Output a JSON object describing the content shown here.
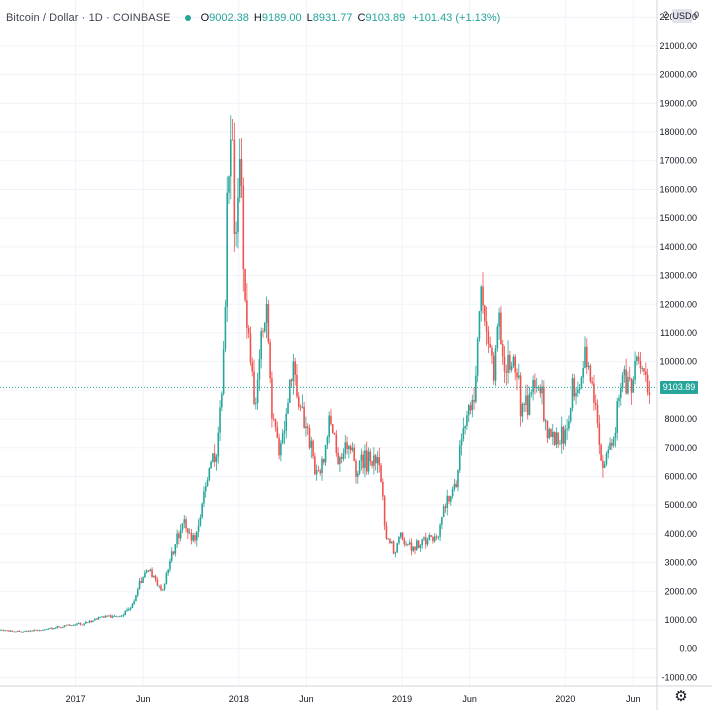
{
  "header": {
    "title": "Bitcoin / Dollar · 1D · COINBASE",
    "open_label": "O",
    "open": "9002.38",
    "high_label": "H",
    "high": "9189.00",
    "low_label": "L",
    "low": "8931.77",
    "close_label": "C",
    "close": "9103.89",
    "change": "+101.43 (+1.13%)"
  },
  "price_axis": {
    "currency": "USD",
    "clipped_left": "2",
    "clipped_right": "0",
    "last_price": "9103.89"
  },
  "colors": {
    "up": "#26a69a",
    "down": "#ef5350",
    "last_price": "#26a69a",
    "grid": "#f0f3fa",
    "axis_text": "#131722"
  },
  "icons": {
    "settings": "gear-icon",
    "status": "status-dot-icon"
  },
  "chart_data": {
    "type": "candlestick",
    "title": "Bitcoin / Dollar · 1D · COINBASE",
    "xlabel": "",
    "ylabel": "",
    "ylim": [
      -1300,
      22600
    ],
    "xlim": [
      "2016-07-16",
      "2020-07-24"
    ],
    "grid": true,
    "y_ticks": [
      "-1000.00",
      "0.00",
      "1000.00",
      "2000.00",
      "3000.00",
      "4000.00",
      "5000.00",
      "6000.00",
      "7000.00",
      "8000.00",
      "9000.00",
      "10000.00",
      "11000.00",
      "12000.00",
      "13000.00",
      "14000.00",
      "15000.00",
      "16000.00",
      "17000.00",
      "18000.00",
      "19000.00",
      "20000.00",
      "21000.00",
      "22000.00"
    ],
    "x_ticks": [
      {
        "label": "2017",
        "date": "2017-01-01"
      },
      {
        "label": "Jun",
        "date": "2017-06-01"
      },
      {
        "label": "2018",
        "date": "2018-01-01"
      },
      {
        "label": "Jun",
        "date": "2018-06-01"
      },
      {
        "label": "2019",
        "date": "2019-01-01"
      },
      {
        "label": "Jun",
        "date": "2019-06-01"
      },
      {
        "label": "2020",
        "date": "2020-01-01"
      },
      {
        "label": "Jun",
        "date": "2020-06-01"
      }
    ],
    "last_price_line": 9103.89,
    "series": [
      {
        "x": [
          "2016-07-16",
          "2016-08-15",
          "2016-09-15",
          "2016-10-15",
          "2016-11-15",
          "2016-12-15",
          "2017-01-05",
          "2017-01-15",
          "2017-02-15",
          "2017-03-15",
          "2017-04-05",
          "2017-04-15",
          "2017-05-01",
          "2017-05-15",
          "2017-05-25",
          "2017-06-10",
          "2017-06-25",
          "2017-07-15",
          "2017-07-25",
          "2017-08-05",
          "2017-08-20",
          "2017-09-02",
          "2017-09-14",
          "2017-09-25",
          "2017-10-10",
          "2017-10-20",
          "2017-11-01",
          "2017-11-12",
          "2017-11-20",
          "2017-11-29",
          "2017-12-07",
          "2017-12-12",
          "2017-12-17",
          "2017-12-22",
          "2017-12-28",
          "2018-01-06",
          "2018-01-10",
          "2018-01-16",
          "2018-01-25",
          "2018-02-06",
          "2018-02-20",
          "2018-03-05",
          "2018-03-15",
          "2018-03-31",
          "2018-04-10",
          "2018-04-25",
          "2018-05-05",
          "2018-05-20",
          "2018-06-05",
          "2018-06-15",
          "2018-06-28",
          "2018-07-10",
          "2018-07-25",
          "2018-08-10",
          "2018-08-25",
          "2018-09-05",
          "2018-09-20",
          "2018-10-05",
          "2018-10-25",
          "2018-11-10",
          "2018-11-20",
          "2018-11-25",
          "2018-12-05",
          "2018-12-15",
          "2018-12-25",
          "2019-01-10",
          "2019-01-25",
          "2019-02-10",
          "2019-02-25",
          "2019-03-10",
          "2019-03-25",
          "2019-04-02",
          "2019-04-15",
          "2019-05-01",
          "2019-05-12",
          "2019-05-25",
          "2019-06-10",
          "2019-06-20",
          "2019-06-26",
          "2019-07-05",
          "2019-07-15",
          "2019-07-25",
          "2019-08-05",
          "2019-08-15",
          "2019-08-25",
          "2019-09-10",
          "2019-09-25",
          "2019-10-10",
          "2019-10-25",
          "2019-11-05",
          "2019-11-20",
          "2019-12-05",
          "2019-12-20",
          "2020-01-05",
          "2020-01-15",
          "2020-02-01",
          "2020-02-13",
          "2020-02-25",
          "2020-03-05",
          "2020-03-12",
          "2020-03-20",
          "2020-04-01",
          "2020-04-15",
          "2020-04-30",
          "2020-05-10",
          "2020-05-20",
          "2020-06-01",
          "2020-06-10",
          "2020-06-20",
          "2020-06-30",
          "2020-07-10"
        ],
        "y": [
          650,
          580,
          610,
          640,
          720,
          800,
          900,
          830,
          1050,
          1150,
          1100,
          1200,
          1400,
          1800,
          2300,
          2800,
          2450,
          2000,
          2700,
          3300,
          4100,
          4600,
          3800,
          3900,
          4800,
          5800,
          6700,
          6500,
          8100,
          10400,
          16000,
          17300,
          19000,
          14000,
          14800,
          17000,
          14500,
          11500,
          10900,
          8000,
          11200,
          11500,
          8200,
          6900,
          7500,
          9300,
          9800,
          8100,
          7600,
          6500,
          6100,
          6600,
          8200,
          6300,
          6700,
          7300,
          6300,
          6600,
          6400,
          6400,
          5000,
          4000,
          3800,
          3300,
          4000,
          3700,
          3550,
          3600,
          3800,
          3900,
          4000,
          5000,
          5200,
          5700,
          7200,
          8000,
          8900,
          10600,
          12500,
          11500,
          11000,
          9500,
          11500,
          10200,
          10000,
          10100,
          8300,
          8600,
          9400,
          9300,
          7500,
          7400,
          7100,
          7700,
          8900,
          9400,
          10300,
          9600,
          8700,
          7900,
          6400,
          6800,
          7100,
          8800,
          9500,
          9200,
          9600,
          9800,
          9500,
          9200,
          9103.89
        ]
      }
    ]
  }
}
